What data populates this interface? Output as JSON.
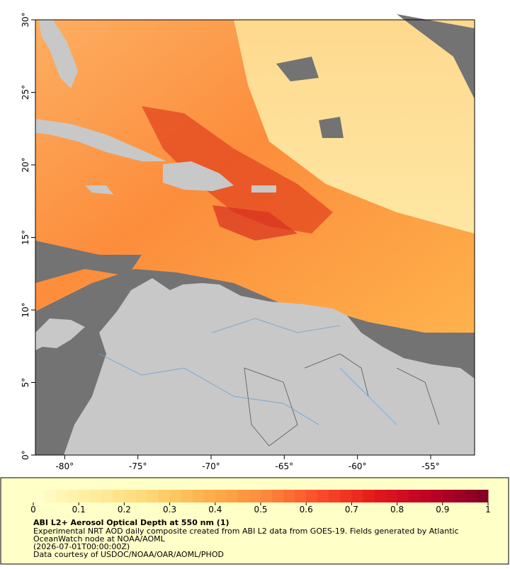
{
  "map": {
    "xlim": [
      -82,
      -52
    ],
    "ylim": [
      0,
      30
    ],
    "xticks": [
      {
        "value": -80,
        "label": "-80°"
      },
      {
        "value": -75,
        "label": "-75°"
      },
      {
        "value": -70,
        "label": "-70°"
      },
      {
        "value": -65,
        "label": "-65°"
      },
      {
        "value": -60,
        "label": "-60°"
      },
      {
        "value": -55,
        "label": "-55°"
      }
    ],
    "yticks": [
      {
        "value": 0,
        "label": "0°"
      },
      {
        "value": 5,
        "label": "5°"
      },
      {
        "value": 10,
        "label": "10°"
      },
      {
        "value": 15,
        "label": "15°"
      },
      {
        "value": 20,
        "label": "20°"
      },
      {
        "value": 25,
        "label": "25°"
      },
      {
        "value": 30,
        "label": "30°"
      }
    ]
  },
  "colorbar": {
    "range": [
      0,
      1
    ],
    "ticks": [
      0,
      0.1,
      0.2,
      0.3,
      0.4,
      0.5,
      0.6,
      0.7,
      0.8,
      0.9,
      1
    ],
    "colors": [
      "#ffffcc",
      "#ffeda0",
      "#fed976",
      "#feb24c",
      "#fd8d3c",
      "#fc4e2a",
      "#e31a1c",
      "#bd0026",
      "#800026"
    ]
  },
  "caption": {
    "title": "ABI L2+ Aerosol Optical Depth at 550 nm (1)",
    "lines": [
      "Experimental NRT AOD daily composite created from ABI L2 data from GOES-19. Fields generated by Atlantic",
      "OceanWatch node at NOAA/AOML",
      "(2026-07-01T00:00:00Z)",
      "Data courtesy of USDOC/NOAA/OAR/AOML/PHOD"
    ]
  }
}
